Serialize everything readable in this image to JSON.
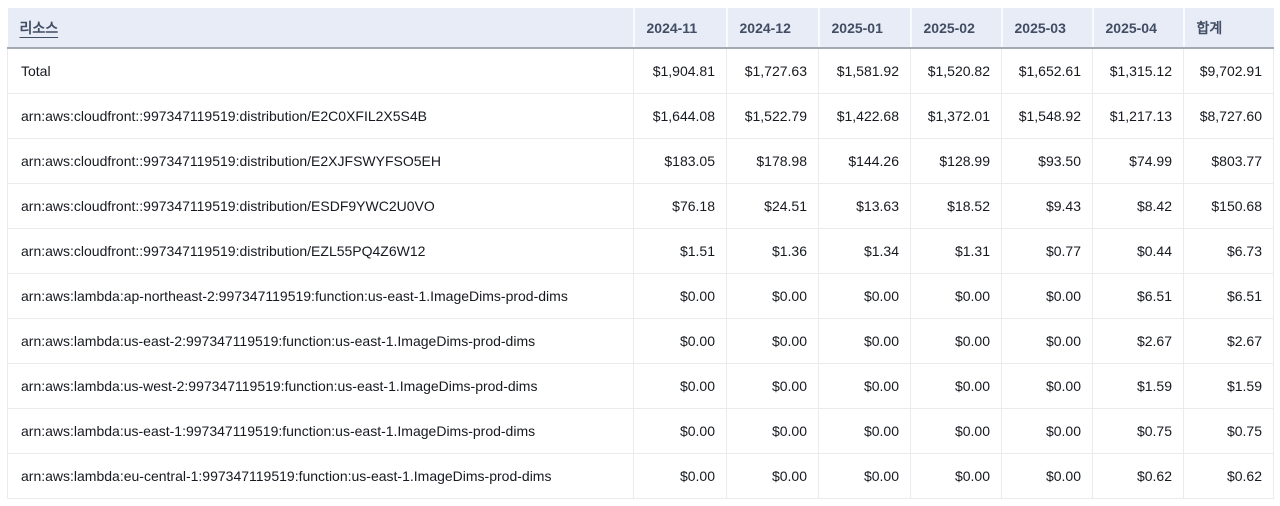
{
  "table": {
    "resource_header": "리소스",
    "month_columns": [
      "2024-11",
      "2024-12",
      "2025-01",
      "2025-02",
      "2025-03",
      "2025-04"
    ],
    "total_column": "합계",
    "rows": [
      {
        "resource": "Total",
        "values": [
          "$1,904.81",
          "$1,727.63",
          "$1,581.92",
          "$1,520.82",
          "$1,652.61",
          "$1,315.12"
        ],
        "total": "$9,702.91"
      },
      {
        "resource": "arn:aws:cloudfront::997347119519:distribution/E2C0XFIL2X5S4B",
        "values": [
          "$1,644.08",
          "$1,522.79",
          "$1,422.68",
          "$1,372.01",
          "$1,548.92",
          "$1,217.13"
        ],
        "total": "$8,727.60"
      },
      {
        "resource": "arn:aws:cloudfront::997347119519:distribution/E2XJFSWYFSO5EH",
        "values": [
          "$183.05",
          "$178.98",
          "$144.26",
          "$128.99",
          "$93.50",
          "$74.99"
        ],
        "total": "$803.77"
      },
      {
        "resource": "arn:aws:cloudfront::997347119519:distribution/ESDF9YWC2U0VO",
        "values": [
          "$76.18",
          "$24.51",
          "$13.63",
          "$18.52",
          "$9.43",
          "$8.42"
        ],
        "total": "$150.68"
      },
      {
        "resource": "arn:aws:cloudfront::997347119519:distribution/EZL55PQ4Z6W12",
        "values": [
          "$1.51",
          "$1.36",
          "$1.34",
          "$1.31",
          "$0.77",
          "$0.44"
        ],
        "total": "$6.73"
      },
      {
        "resource": "arn:aws:lambda:ap-northeast-2:997347119519:function:us-east-1.ImageDims-prod-dims",
        "values": [
          "$0.00",
          "$0.00",
          "$0.00",
          "$0.00",
          "$0.00",
          "$6.51"
        ],
        "total": "$6.51"
      },
      {
        "resource": "arn:aws:lambda:us-east-2:997347119519:function:us-east-1.ImageDims-prod-dims",
        "values": [
          "$0.00",
          "$0.00",
          "$0.00",
          "$0.00",
          "$0.00",
          "$2.67"
        ],
        "total": "$2.67"
      },
      {
        "resource": "arn:aws:lambda:us-west-2:997347119519:function:us-east-1.ImageDims-prod-dims",
        "values": [
          "$0.00",
          "$0.00",
          "$0.00",
          "$0.00",
          "$0.00",
          "$1.59"
        ],
        "total": "$1.59"
      },
      {
        "resource": "arn:aws:lambda:us-east-1:997347119519:function:us-east-1.ImageDims-prod-dims",
        "values": [
          "$0.00",
          "$0.00",
          "$0.00",
          "$0.00",
          "$0.00",
          "$0.75"
        ],
        "total": "$0.75"
      },
      {
        "resource": "arn:aws:lambda:eu-central-1:997347119519:function:us-east-1.ImageDims-prod-dims",
        "values": [
          "$0.00",
          "$0.00",
          "$0.00",
          "$0.00",
          "$0.00",
          "$0.62"
        ],
        "total": "$0.62"
      }
    ]
  },
  "colors": {
    "header_bg": "#e8ecf7",
    "header_text": "#414d63",
    "header_bottom_border": "#a3aab4",
    "header_divider": "#f8fafd",
    "grid_line": "#e9ebee",
    "body_text": "#16191f",
    "background": "#ffffff"
  }
}
